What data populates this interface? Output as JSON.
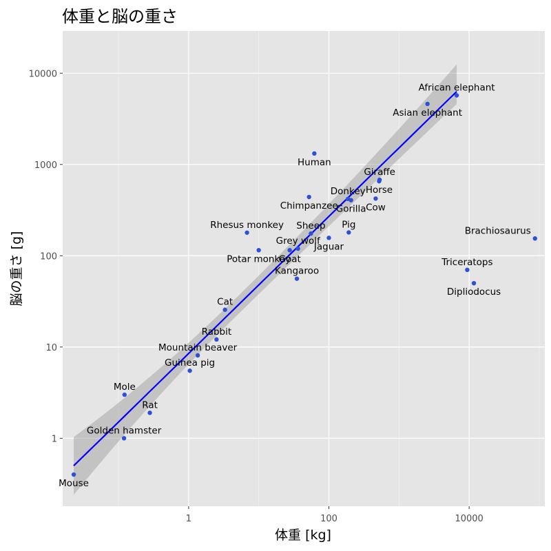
{
  "chart_data": {
    "type": "scatter",
    "title": "体重と脳の重さ",
    "xlabel": "体重 [kg]",
    "ylabel": "脳の重さ [g]",
    "x_scale": "log10",
    "y_scale": "log10",
    "xlim": [
      0.016,
      120000
    ],
    "ylim": [
      0.18,
      29000
    ],
    "x_ticks": [
      {
        "value": 1,
        "label": "1"
      },
      {
        "value": 100,
        "label": "100"
      },
      {
        "value": 10000,
        "label": "10000"
      }
    ],
    "y_ticks": [
      {
        "value": 1,
        "label": "1"
      },
      {
        "value": 10,
        "label": "10"
      },
      {
        "value": 100,
        "label": "100"
      },
      {
        "value": 1000,
        "label": "1000"
      },
      {
        "value": 10000,
        "label": "10000"
      }
    ],
    "colors": {
      "points": "#2e4fd8",
      "fit_line": "#0000ff",
      "ribbon": "#999999",
      "panel": "#e5e5e5",
      "grid": "#ffffff"
    },
    "fit": {
      "method": "linear regression on log scales",
      "x_range": [
        0.023,
        6654
      ],
      "line_y": [
        0.5,
        6300
      ],
      "ribbon_lower": [
        0.24,
        4600
      ],
      "ribbon_upper": [
        1.03,
        12500
      ]
    },
    "points": [
      {
        "name": "African elephant",
        "x": 6654,
        "y": 5712,
        "label_pos": "above"
      },
      {
        "name": "Asian elephant",
        "x": 2547,
        "y": 4603,
        "label_pos": "below"
      },
      {
        "name": "Human",
        "x": 62,
        "y": 1320,
        "label_pos": "below"
      },
      {
        "name": "Giraffe",
        "x": 529,
        "y": 680,
        "label_pos": "above"
      },
      {
        "name": "Donkey",
        "x": 187.1,
        "y": 419,
        "label_pos": "above"
      },
      {
        "name": "Horse",
        "x": 521,
        "y": 655,
        "label_pos": "below"
      },
      {
        "name": "Cow",
        "x": 465,
        "y": 423,
        "label_pos": "below"
      },
      {
        "name": "Gorilla",
        "x": 207,
        "y": 406,
        "label_pos": "below"
      },
      {
        "name": "Chimpanzee",
        "x": 52.16,
        "y": 440,
        "label_pos": "below"
      },
      {
        "name": "Pig",
        "x": 192,
        "y": 180,
        "label_pos": "above"
      },
      {
        "name": "Sheep",
        "x": 55.5,
        "y": 175,
        "label_pos": "above"
      },
      {
        "name": "Jaguar",
        "x": 100,
        "y": 157,
        "label_pos": "below"
      },
      {
        "name": "Rhesus monkey",
        "x": 6.8,
        "y": 179,
        "label_pos": "above"
      },
      {
        "name": "Grey wolf",
        "x": 36.33,
        "y": 119.5,
        "label_pos": "above"
      },
      {
        "name": "Goat",
        "x": 27.66,
        "y": 115,
        "label_pos": "below"
      },
      {
        "name": "Potar monkey",
        "x": 10,
        "y": 115,
        "label_pos": "below"
      },
      {
        "name": "Kangaroo",
        "x": 35,
        "y": 56,
        "label_pos": "above"
      },
      {
        "name": "Brachiosaurus",
        "x": 87000,
        "y": 154.5,
        "label_pos": "above"
      },
      {
        "name": "Triceratops",
        "x": 9400,
        "y": 70,
        "label_pos": "above"
      },
      {
        "name": "Dipliodocus",
        "x": 11700,
        "y": 50,
        "label_pos": "below"
      },
      {
        "name": "Cat",
        "x": 3.3,
        "y": 25.6,
        "label_pos": "above"
      },
      {
        "name": "Rabbit",
        "x": 2.5,
        "y": 12.1,
        "label_pos": "above"
      },
      {
        "name": "Mountain beaver",
        "x": 1.35,
        "y": 8.1,
        "label_pos": "above"
      },
      {
        "name": "Guinea pig",
        "x": 1.04,
        "y": 5.5,
        "label_pos": "above"
      },
      {
        "name": "Mole",
        "x": 0.122,
        "y": 3,
        "label_pos": "above"
      },
      {
        "name": "Rat",
        "x": 0.28,
        "y": 1.9,
        "label_pos": "above"
      },
      {
        "name": "Golden hamster",
        "x": 0.12,
        "y": 1,
        "label_pos": "above"
      },
      {
        "name": "Mouse",
        "x": 0.023,
        "y": 0.4,
        "label_pos": "below"
      }
    ]
  }
}
